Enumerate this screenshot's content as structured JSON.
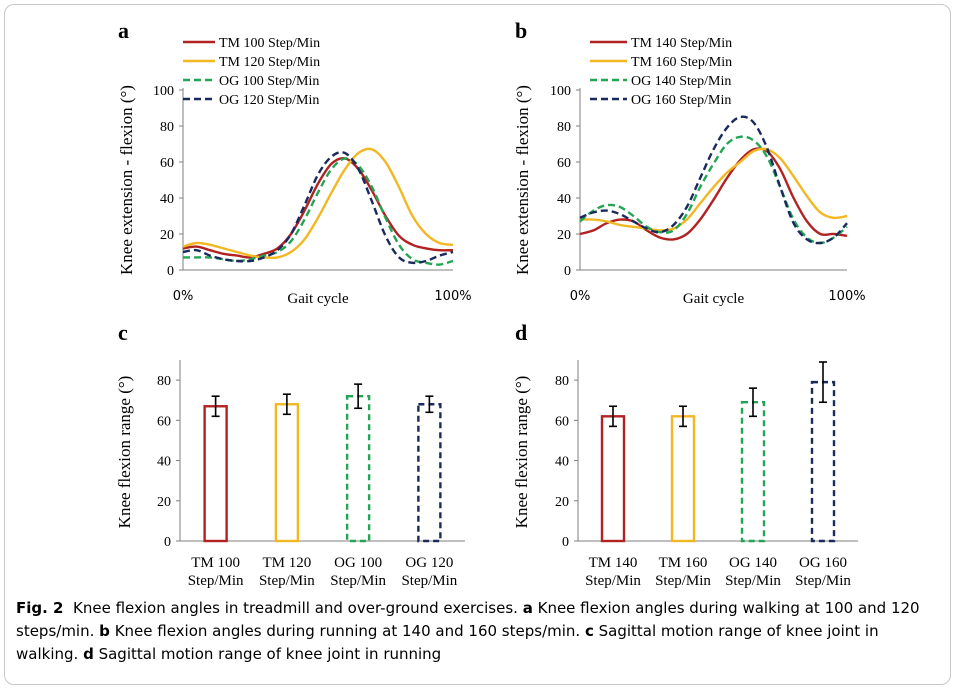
{
  "colors": {
    "tm_walk_low": "#b22222",
    "tm_walk_high": "#f2b824",
    "og_green": "#22a554",
    "og_navy": "#1b2a5c",
    "axis": "#7f7f7f"
  },
  "chart_data": [
    {
      "panel": "a",
      "type": "line",
      "xlabel": "Gait cycle",
      "ylabel": "Knee extension - flexion (°)",
      "x_tick_labels": [
        "0%",
        "100%"
      ],
      "ylim": [
        0,
        100
      ],
      "yticks": [
        0,
        20,
        40,
        60,
        80,
        100
      ],
      "legend_position": "top-left",
      "x": [
        0,
        5,
        10,
        15,
        20,
        25,
        30,
        35,
        40,
        45,
        50,
        55,
        60,
        65,
        70,
        75,
        80,
        85,
        90,
        95,
        100
      ],
      "series": [
        {
          "name": "TM 100 Step/Min",
          "color_key": "tm_walk_low",
          "dash": false,
          "values": [
            12,
            13,
            11,
            9,
            8,
            7,
            9,
            12,
            20,
            33,
            48,
            59,
            62,
            56,
            44,
            30,
            19,
            14,
            12,
            11,
            11
          ]
        },
        {
          "name": "TM 120 Step/Min",
          "color_key": "tm_walk_high",
          "dash": false,
          "values": [
            13,
            15,
            14,
            12,
            10,
            8,
            7,
            7,
            10,
            17,
            29,
            43,
            56,
            65,
            67,
            60,
            46,
            30,
            20,
            15,
            14
          ]
        },
        {
          "name": "OG 100 Step/Min",
          "color_key": "og_green",
          "dash": true,
          "values": [
            7,
            7,
            7,
            6,
            5,
            6,
            8,
            10,
            16,
            28,
            43,
            56,
            62,
            58,
            46,
            29,
            14,
            6,
            4,
            3,
            5
          ]
        },
        {
          "name": "OG 120 Step/Min",
          "color_key": "og_navy",
          "dash": true,
          "values": [
            10,
            11,
            8,
            6,
            5,
            5,
            7,
            11,
            20,
            36,
            53,
            63,
            65,
            56,
            38,
            19,
            7,
            4,
            5,
            8,
            10
          ]
        }
      ]
    },
    {
      "panel": "b",
      "type": "line",
      "xlabel": "Gait cycle",
      "ylabel": "Knee extension - flexion (°)",
      "x_tick_labels": [
        "0%",
        "100%"
      ],
      "ylim": [
        0,
        100
      ],
      "yticks": [
        0,
        20,
        40,
        60,
        80,
        100
      ],
      "legend_position": "top-left",
      "x": [
        0,
        5,
        10,
        15,
        20,
        25,
        30,
        35,
        40,
        45,
        50,
        55,
        60,
        65,
        70,
        75,
        80,
        85,
        90,
        95,
        100
      ],
      "series": [
        {
          "name": "TM 140 Step/Min",
          "color_key": "tm_walk_low",
          "dash": false,
          "values": [
            20,
            22,
            26,
            28,
            27,
            22,
            18,
            17,
            20,
            28,
            39,
            51,
            61,
            67,
            66,
            56,
            40,
            27,
            20,
            20,
            19
          ]
        },
        {
          "name": "TM 160 Step/Min",
          "color_key": "tm_walk_high",
          "dash": false,
          "values": [
            28,
            28,
            27,
            25,
            24,
            23,
            22,
            23,
            28,
            37,
            46,
            54,
            60,
            66,
            67,
            62,
            52,
            41,
            32,
            29,
            30
          ]
        },
        {
          "name": "OG 140 Step/Min",
          "color_key": "og_green",
          "dash": true,
          "values": [
            27,
            33,
            36,
            35,
            30,
            24,
            21,
            22,
            31,
            46,
            59,
            70,
            74,
            72,
            63,
            46,
            28,
            18,
            15,
            18,
            24
          ]
        },
        {
          "name": "OG 160 Step/Min",
          "color_key": "og_navy",
          "dash": true,
          "values": [
            29,
            32,
            33,
            31,
            27,
            23,
            21,
            25,
            35,
            51,
            67,
            79,
            85,
            82,
            68,
            46,
            26,
            17,
            15,
            18,
            26
          ]
        }
      ]
    },
    {
      "panel": "c",
      "type": "bar",
      "ylabel": "Knee flexion range (°)",
      "ylim": [
        0,
        90
      ],
      "yticks": [
        0,
        20,
        40,
        60,
        80
      ],
      "categories": [
        [
          "TM 100",
          "Step/Min"
        ],
        [
          "TM 120",
          "Step/Min"
        ],
        [
          "OG 100",
          "Step/Min"
        ],
        [
          "OG 120",
          "Step/Min"
        ]
      ],
      "values": [
        67,
        68,
        72,
        68
      ],
      "errors": [
        5,
        5,
        6,
        4
      ],
      "color_keys": [
        "tm_walk_low",
        "tm_walk_high",
        "og_green",
        "og_navy"
      ],
      "dashed": [
        false,
        false,
        true,
        true
      ]
    },
    {
      "panel": "d",
      "type": "bar",
      "ylabel": "Knee flexion range (°)",
      "ylim": [
        0,
        90
      ],
      "yticks": [
        0,
        20,
        40,
        60,
        80
      ],
      "categories": [
        [
          "TM 140",
          "Step/Min"
        ],
        [
          "TM 160",
          "Step/Min"
        ],
        [
          "OG 140",
          "Step/Min"
        ],
        [
          "OG 160",
          "Step/Min"
        ]
      ],
      "values": [
        62,
        62,
        69,
        79
      ],
      "errors": [
        5,
        5,
        7,
        10
      ],
      "color_keys": [
        "tm_walk_low",
        "tm_walk_high",
        "og_green",
        "og_navy"
      ],
      "dashed": [
        false,
        false,
        true,
        true
      ]
    }
  ],
  "caption": {
    "label": "Fig. 2",
    "intro": "Knee flexion angles in treadmill and over-ground exercises.",
    "parts": [
      {
        "letter": "a",
        "text": "Knee flexion angles during walking at 100 and 120 steps/min."
      },
      {
        "letter": "b",
        "text": "Knee flexion angles during running at 140 and 160 steps/min."
      },
      {
        "letter": "c",
        "text": "Sagittal motion range of knee joint in walking."
      },
      {
        "letter": "d",
        "text": "Sagittal motion range of knee joint in running"
      }
    ]
  }
}
